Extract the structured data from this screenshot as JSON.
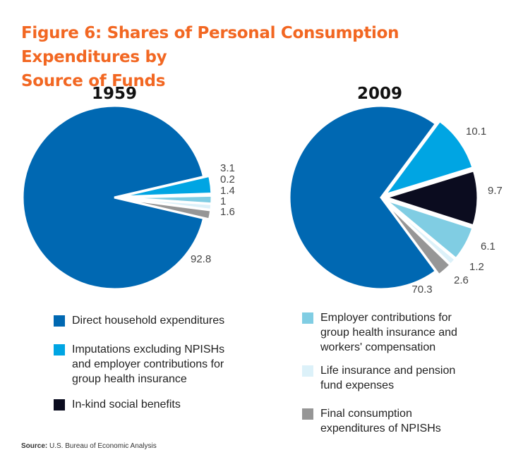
{
  "title": {
    "line1": "Figure 6: Shares of Personal Consumption Expenditures by",
    "line2": "Source of Funds"
  },
  "colors": {
    "direct": "#0068b2",
    "imputations": "#00a5e3",
    "inkind": "#0b0c1f",
    "employer": "#80cde3",
    "life": "#dcf1f9",
    "npish": "#969696",
    "title": "#f26722"
  },
  "chart_data": [
    {
      "type": "pie",
      "title": "1959",
      "slices": [
        {
          "key": "direct",
          "value": 92.8,
          "label": "92.8"
        },
        {
          "key": "imputations",
          "value": 3.1,
          "label": "3.1"
        },
        {
          "key": "inkind",
          "value": 0.2,
          "label": "0.2"
        },
        {
          "key": "employer",
          "value": 1.4,
          "label": "1.4"
        },
        {
          "key": "life",
          "value": 1,
          "label": "1"
        },
        {
          "key": "npish",
          "value": 1.6,
          "label": "1.6"
        }
      ]
    },
    {
      "type": "pie",
      "title": "2009",
      "slices": [
        {
          "key": "direct",
          "value": 70.3,
          "label": "70.3"
        },
        {
          "key": "imputations",
          "value": 10.1,
          "label": "10.1"
        },
        {
          "key": "inkind",
          "value": 9.7,
          "label": "9.7"
        },
        {
          "key": "employer",
          "value": 6.1,
          "label": "6.1"
        },
        {
          "key": "life",
          "value": 1.2,
          "label": "1.2"
        },
        {
          "key": "npish",
          "value": 2.6,
          "label": "2.6"
        }
      ]
    }
  ],
  "legend": {
    "direct": [
      "Direct household expenditures"
    ],
    "imputations": [
      "Imputations excluding NPISHs",
      "and employer contributions for",
      "group health insurance"
    ],
    "inkind": [
      "In-kind social benefits"
    ],
    "employer": [
      "Employer contributions for",
      "group health insurance and",
      "workers' compensation"
    ],
    "life": [
      "Life insurance and pension",
      "fund expenses"
    ],
    "npish": [
      "Final consumption",
      "expenditures of NPISHs"
    ]
  },
  "source": {
    "label": "Source:",
    "text": "U.S. Bureau of Economic Analysis"
  }
}
